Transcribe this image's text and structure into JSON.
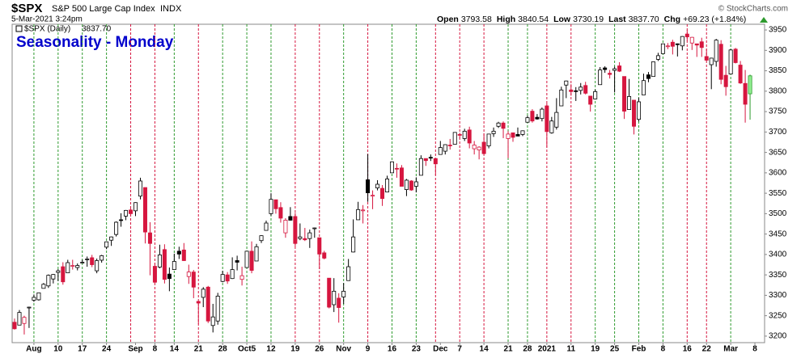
{
  "chart_data": {
    "type": "candlestick",
    "symbol": "$SPX",
    "name": "S&P 500 Large Cap Index",
    "exchange": "INDX",
    "date": "5-Mar-2021 3:24pm",
    "quote": [
      {
        "label": "Open",
        "value": "3793.58"
      },
      {
        "label": "High",
        "value": "3840.54"
      },
      {
        "label": "Low",
        "value": "3730.19"
      },
      {
        "label": "Last",
        "value": "3837.70"
      },
      {
        "label": "Chg",
        "value": "+69.23 (+1.84%)"
      }
    ],
    "copyright": "© StockCharts.com",
    "title": "Seasonality - Monday",
    "title_color": "#0000cc",
    "up_color": "#000000",
    "down_color": "#d6163f",
    "last_color": "#90ee90",
    "weekly_line_up_color": "#2e9a2e",
    "weekly_line_down_color": "#d6163f",
    "week_starts": [
      4,
      9,
      14,
      19,
      24,
      29,
      33,
      38,
      43,
      48,
      53,
      58,
      63,
      68,
      73,
      78,
      83,
      87,
      92,
      97,
      102,
      106,
      110,
      115,
      120,
      124,
      129,
      134,
      139,
      143,
      148
    ],
    "ylim": [
      3184,
      3964
    ],
    "yticks": [
      3200,
      3250,
      3300,
      3350,
      3400,
      3450,
      3500,
      3550,
      3600,
      3650,
      3700,
      3750,
      3800,
      3850,
      3900,
      3950
    ],
    "xlim": [
      -0.5,
      155
    ],
    "xticks": [
      {
        "value": 4,
        "label": "Aug"
      },
      {
        "value": 9,
        "label": "10"
      },
      {
        "value": 14,
        "label": "17"
      },
      {
        "value": 19,
        "label": "24"
      },
      {
        "value": 25,
        "label": "Sep"
      },
      {
        "value": 29,
        "label": "8"
      },
      {
        "value": 33,
        "label": "14"
      },
      {
        "value": 38,
        "label": "21"
      },
      {
        "value": 43,
        "label": "28"
      },
      {
        "value": 48,
        "label": "Oct5"
      },
      {
        "value": 53,
        "label": "12"
      },
      {
        "value": 58,
        "label": "19"
      },
      {
        "value": 63,
        "label": "26"
      },
      {
        "value": 68,
        "label": "Nov"
      },
      {
        "value": 73,
        "label": "9"
      },
      {
        "value": 78,
        "label": "16"
      },
      {
        "value": 83,
        "label": "23"
      },
      {
        "value": 88,
        "label": "Dec"
      },
      {
        "value": 92,
        "label": "7"
      },
      {
        "value": 97,
        "label": "14"
      },
      {
        "value": 102,
        "label": "21"
      },
      {
        "value": 106,
        "label": "28"
      },
      {
        "value": 110,
        "label": "2021"
      },
      {
        "value": 115,
        "label": "11"
      },
      {
        "value": 120,
        "label": "19"
      },
      {
        "value": 124,
        "label": "25"
      },
      {
        "value": 129,
        "label": "Feb"
      },
      {
        "value": 134,
        "label": "8"
      },
      {
        "value": 139,
        "label": "16"
      },
      {
        "value": 143,
        "label": "22"
      },
      {
        "value": 148,
        "label": "Mar"
      },
      {
        "value": 153,
        "label": "8"
      }
    ],
    "series": [
      {
        "name": "$SPX (Daily)",
        "last_label": "3837.70",
        "open": [
          3234,
          3227,
          3231,
          3270,
          3288,
          3289,
          3317,
          3323,
          3340,
          3356,
          3370,
          3355,
          3372,
          3368,
          3380,
          3387,
          3392,
          3360,
          3386,
          3418,
          3435,
          3449,
          3485,
          3494,
          3509,
          3507,
          3543,
          3564,
          3453,
          3371,
          3369,
          3412,
          3352,
          3363,
          3408,
          3411,
          3346,
          3357,
          3285,
          3295,
          3320,
          3226,
          3237,
          3334,
          3350,
          3341,
          3385,
          3339,
          3368,
          3408,
          3384,
          3434,
          3459,
          3500,
          3534,
          3515,
          3453,
          3493,
          3493,
          3439,
          3439,
          3439,
          3464,
          3441,
          3404,
          3342,
          3277,
          3293,
          3296,
          3336,
          3406,
          3485,
          3508,
          3583,
          3544,
          3563,
          3562,
          3553,
          3600,
          3611,
          3612,
          3559,
          3580,
          3567,
          3594,
          3635,
          3638,
          3635,
          3645,
          3653,
          3668,
          3670,
          3694,
          3684,
          3705,
          3659,
          3656,
          3675,
          3666,
          3696,
          3714,
          3722,
          3684,
          3698,
          3694,
          3694,
          3724,
          3751,
          3736,
          3733,
          3764,
          3698,
          3712,
          3764,
          3815,
          3803,
          3801,
          3802,
          3814,
          3788,
          3781,
          3816,
          3857,
          3844,
          3851,
          3862,
          3836,
          3755,
          3778,
          3731,
          3791,
          3840,
          3836,
          3878,
          3892,
          3910,
          3920,
          3916,
          3911,
          3940,
          3918,
          3916,
          3921,
          3885,
          3865,
          3873,
          3915,
          3839,
          3842,
          3903,
          3864,
          3819,
          3793.58
        ],
        "high": [
          3243,
          3264,
          3250,
          3272,
          3302,
          3306,
          3330,
          3351,
          3352,
          3364,
          3381,
          3387,
          3387,
          3378,
          3387,
          3395,
          3399,
          3390,
          3399,
          3432,
          3444,
          3481,
          3501,
          3509,
          3514,
          3528,
          3588,
          3564,
          3479,
          3379,
          3424,
          3425,
          3368,
          3402,
          3419,
          3428,
          3375,
          3362,
          3285,
          3320,
          3323,
          3279,
          3306,
          3360,
          3357,
          3393,
          3397,
          3370,
          3408,
          3432,
          3426,
          3447,
          3483,
          3550,
          3534,
          3528,
          3489,
          3516,
          3502,
          3476,
          3465,
          3461,
          3466,
          3441,
          3409,
          3342,
          3342,
          3305,
          3330,
          3389,
          3486,
          3529,
          3521,
          3646,
          3557,
          3582,
          3570,
          3593,
          3628,
          3623,
          3619,
          3585,
          3582,
          3589,
          3643,
          3635,
          3645,
          3635,
          3678,
          3670,
          3683,
          3699,
          3698,
          3708,
          3713,
          3678,
          3665,
          3697,
          3695,
          3711,
          3725,
          3726,
          3702,
          3698,
          3711,
          3704,
          3740,
          3756,
          3744,
          3760,
          3770,
          3737,
          3783,
          3811,
          3826,
          3817,
          3810,
          3820,
          3823,
          3788,
          3804,
          3859,
          3861,
          3852,
          3860,
          3871,
          3836,
          3830,
          3778,
          3784,
          3843,
          3847,
          3872,
          3894,
          3916,
          3918,
          3926,
          3917,
          3935,
          3950,
          3933,
          3916,
          3931,
          3903,
          3882,
          3928,
          3925,
          3862,
          3903,
          3906,
          3874,
          3852,
          3840.54
        ],
        "low": [
          3216,
          3227,
          3204,
          3220,
          3284,
          3287,
          3317,
          3318,
          3329,
          3335,
          3326,
          3355,
          3363,
          3361,
          3379,
          3370,
          3369,
          3354,
          3380,
          3413,
          3421,
          3444,
          3468,
          3484,
          3494,
          3494,
          3535,
          3427,
          3349,
          3329,
          3366,
          3329,
          3310,
          3363,
          3389,
          3384,
          3328,
          3293,
          3229,
          3271,
          3232,
          3209,
          3228,
          3332,
          3328,
          3340,
          3361,
          3324,
          3367,
          3354,
          3384,
          3428,
          3459,
          3495,
          3500,
          3478,
          3441,
          3483,
          3419,
          3435,
          3433,
          3416,
          3441,
          3364,
          3388,
          3268,
          3259,
          3233,
          3279,
          3336,
          3405,
          3485,
          3476,
          3529,
          3511,
          3557,
          3519,
          3553,
          3600,
          3588,
          3567,
          3543,
          3556,
          3552,
          3594,
          3617,
          3629,
          3594,
          3645,
          3645,
          3657,
          3670,
          3684,
          3678,
          3660,
          3645,
          3633,
          3645,
          3660,
          3688,
          3710,
          3685,
          3636,
          3676,
          3690,
          3690,
          3723,
          3723,
          3730,
          3726,
          3662,
          3696,
          3706,
          3764,
          3783,
          3789,
          3776,
          3792,
          3792,
          3750,
          3780,
          3816,
          3845,
          3831,
          3797,
          3847,
          3732,
          3755,
          3694,
          3726,
          3791,
          3822,
          3836,
          3874,
          3892,
          3903,
          3890,
          3885,
          3900,
          3923,
          3901,
          3884,
          3884,
          3874,
          3805,
          3860,
          3817,
          3789,
          3842,
          3868,
          3818,
          3723,
          3730.19
        ],
        "close": [
          3218,
          3258,
          3246,
          3271,
          3295,
          3306,
          3327,
          3349,
          3351,
          3360,
          3333,
          3380,
          3373,
          3373,
          3381,
          3389,
          3375,
          3385,
          3397,
          3431,
          3443,
          3479,
          3485,
          3508,
          3500,
          3527,
          3580,
          3455,
          3427,
          3332,
          3399,
          3339,
          3341,
          3383,
          3401,
          3385,
          3357,
          3320,
          3281,
          3315,
          3237,
          3247,
          3298,
          3351,
          3335,
          3363,
          3381,
          3348,
          3408,
          3361,
          3419,
          3446,
          3477,
          3535,
          3512,
          3489,
          3484,
          3484,
          3427,
          3443,
          3436,
          3453,
          3465,
          3401,
          3391,
          3271,
          3310,
          3270,
          3310,
          3370,
          3443,
          3510,
          3509,
          3551,
          3545,
          3572,
          3537,
          3585,
          3627,
          3610,
          3567,
          3582,
          3558,
          3578,
          3635,
          3630,
          3638,
          3622,
          3662,
          3669,
          3666,
          3699,
          3692,
          3702,
          3673,
          3668,
          3663,
          3647,
          3695,
          3702,
          3722,
          3709,
          3695,
          3687,
          3690,
          3703,
          3735,
          3727,
          3732,
          3756,
          3701,
          3727,
          3748,
          3803,
          3825,
          3799,
          3801,
          3810,
          3795,
          3768,
          3799,
          3852,
          3853,
          3841,
          3855,
          3849,
          3751,
          3787,
          3714,
          3774,
          3826,
          3831,
          3872,
          3887,
          3916,
          3911,
          3910,
          3916,
          3934,
          3933,
          3932,
          3913,
          3907,
          3876,
          3881,
          3925,
          3829,
          3811,
          3901,
          3870,
          3820,
          3768,
          3837.7
        ]
      }
    ]
  }
}
